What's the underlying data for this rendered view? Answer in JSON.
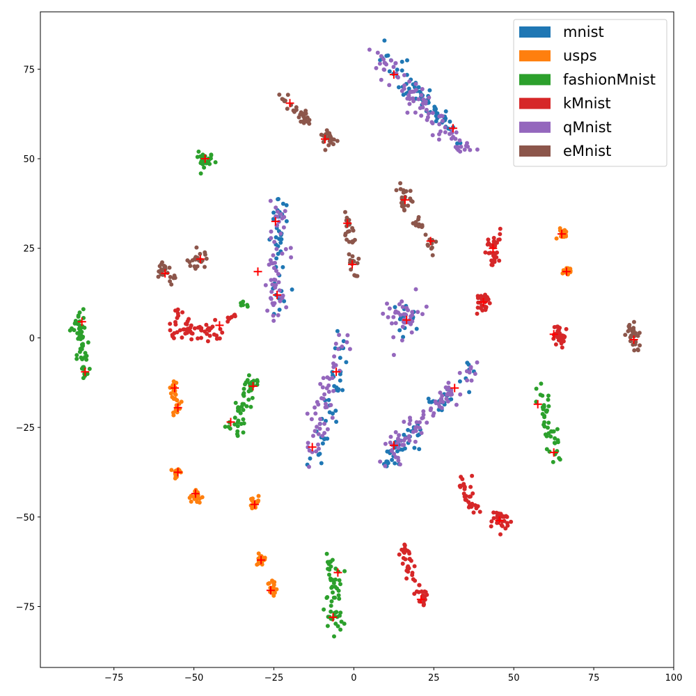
{
  "chart_data": {
    "type": "scatter",
    "title": "",
    "xlabel": "",
    "ylabel": "",
    "xlim": [
      -98,
      100
    ],
    "ylim": [
      -92,
      91
    ],
    "xticks": [
      -75,
      -50,
      -25,
      0,
      25,
      50,
      75,
      100
    ],
    "yticks": [
      -75,
      -50,
      -25,
      0,
      25,
      50,
      75
    ],
    "grid": false,
    "legend_position": "top-right",
    "centroid_color": "#ff0000",
    "series": [
      {
        "name": "mnist",
        "color": "#1f77b4",
        "clusters": [
          {
            "a": [
              8,
              80
            ],
            "b": [
              34,
              54
            ],
            "w": 3,
            "n": 70
          },
          {
            "a": [
              -23,
              39
            ],
            "b": [
              -24,
              6
            ],
            "w": 2.5,
            "n": 40
          },
          {
            "a": [
              -3,
              -1
            ],
            "b": [
              -13,
              -38
            ],
            "w": 2.5,
            "n": 40
          },
          {
            "a": [
              10,
              -35
            ],
            "b": [
              22,
              -24
            ],
            "w": 3,
            "n": 35
          },
          {
            "a": [
              24,
              -20
            ],
            "b": [
              38,
              -9
            ],
            "w": 2.5,
            "n": 25
          },
          {
            "a": [
              16,
              6
            ],
            "b": [
              16,
              6
            ],
            "w": 4,
            "n": 15
          }
        ]
      },
      {
        "name": "usps",
        "color": "#ff7f0e",
        "clusters": [
          {
            "a": [
              -56,
              -12
            ],
            "b": [
              -56,
              -21
            ],
            "w": 1.5,
            "n": 30
          },
          {
            "a": [
              -55,
              -37.5
            ],
            "b": [
              -55,
              -37.5
            ],
            "w": 1.5,
            "n": 20
          },
          {
            "a": [
              -49.5,
              -44
            ],
            "b": [
              -49.5,
              -44
            ],
            "w": 1.5,
            "n": 18
          },
          {
            "a": [
              -31,
              -46
            ],
            "b": [
              -31,
              -46
            ],
            "w": 1.5,
            "n": 18
          },
          {
            "a": [
              -29,
              -62
            ],
            "b": [
              -29,
              -62
            ],
            "w": 1.7,
            "n": 20
          },
          {
            "a": [
              -26,
              -69
            ],
            "b": [
              -25,
              -71.5
            ],
            "w": 1.5,
            "n": 18
          },
          {
            "a": [
              65,
              30
            ],
            "b": [
              65,
              28
            ],
            "w": 1.3,
            "n": 15
          },
          {
            "a": [
              66.5,
              18.5
            ],
            "b": [
              66.5,
              18.5
            ],
            "w": 1.3,
            "n": 15
          }
        ]
      },
      {
        "name": "fashionMnist",
        "color": "#2ca02c",
        "clusters": [
          {
            "a": [
              -46.5,
              50
            ],
            "b": [
              -46.5,
              50
            ],
            "w": 2,
            "n": 30
          },
          {
            "a": [
              -86,
              7
            ],
            "b": [
              -84,
              -12
            ],
            "w": 1.8,
            "n": 55
          },
          {
            "a": [
              -31,
              -11
            ],
            "b": [
              -39,
              -27
            ],
            "w": 2.2,
            "n": 50
          },
          {
            "a": [
              -36,
              9
            ],
            "b": [
              -33,
              9
            ],
            "w": 1,
            "n": 6
          },
          {
            "a": [
              -6,
              -62
            ],
            "b": [
              -6,
              -82
            ],
            "w": 2.5,
            "n": 55
          },
          {
            "a": [
              58,
              -15
            ],
            "b": [
              64,
              -34
            ],
            "w": 1.8,
            "n": 45
          }
        ]
      },
      {
        "name": "kMnist",
        "color": "#d62728",
        "clusters": [
          {
            "a": [
              -56,
              2
            ],
            "b": [
              -40,
              2
            ],
            "w": 2.5,
            "n": 55
          },
          {
            "a": [
              -40,
              5
            ],
            "b": [
              -36,
              7
            ],
            "w": 1,
            "n": 8
          },
          {
            "a": [
              -56,
              8
            ],
            "b": [
              -55,
              6
            ],
            "w": 1,
            "n": 5
          },
          {
            "a": [
              44,
              29
            ],
            "b": [
              43,
              21
            ],
            "w": 2,
            "n": 35
          },
          {
            "a": [
              40,
              12
            ],
            "b": [
              41,
              8
            ],
            "w": 2.2,
            "n": 30
          },
          {
            "a": [
              64,
              3
            ],
            "b": [
              64,
              -2
            ],
            "w": 2,
            "n": 30
          },
          {
            "a": [
              34,
              -41
            ],
            "b": [
              38,
              -48
            ],
            "w": 2.2,
            "n": 30
          },
          {
            "a": [
              45,
              -49
            ],
            "b": [
              47,
              -53
            ],
            "w": 2.5,
            "n": 30
          },
          {
            "a": [
              16,
              -59
            ],
            "b": [
              22,
              -75
            ],
            "w": 1.8,
            "n": 45
          }
        ]
      },
      {
        "name": "qMnist",
        "color": "#9467bd",
        "clusters": [
          {
            "a": [
              6,
              80
            ],
            "b": [
              35,
              52
            ],
            "w": 3,
            "n": 90
          },
          {
            "a": [
              -23,
              38
            ],
            "b": [
              -25,
              6
            ],
            "w": 3,
            "n": 55
          },
          {
            "a": [
              -4,
              0
            ],
            "b": [
              -14,
              -36
            ],
            "w": 3,
            "n": 55
          },
          {
            "a": [
              11,
              -34
            ],
            "b": [
              21,
              -23
            ],
            "w": 3.5,
            "n": 45
          },
          {
            "a": [
              24,
              -20
            ],
            "b": [
              38,
              -8
            ],
            "w": 2.8,
            "n": 40
          },
          {
            "a": [
              16,
              6
            ],
            "b": [
              16,
              6
            ],
            "w": 5,
            "n": 40
          }
        ]
      },
      {
        "name": "eMnist",
        "color": "#8c564b",
        "clusters": [
          {
            "a": [
              -23,
              67
            ],
            "b": [
              -14,
              60
            ],
            "w": 1.8,
            "n": 30
          },
          {
            "a": [
              -9,
              57
            ],
            "b": [
              -6,
              54
            ],
            "w": 2,
            "n": 25
          },
          {
            "a": [
              -60,
              20
            ],
            "b": [
              -57,
              16
            ],
            "w": 2,
            "n": 25
          },
          {
            "a": [
              -52,
              21
            ],
            "b": [
              -46,
              22
            ],
            "w": 2,
            "n": 25
          },
          {
            "a": [
              -2,
              34
            ],
            "b": [
              0,
              17
            ],
            "w": 1.8,
            "n": 35
          },
          {
            "a": [
              15,
              41
            ],
            "b": [
              17,
              37
            ],
            "w": 2,
            "n": 25
          },
          {
            "a": [
              19,
              34
            ],
            "b": [
              25,
              25
            ],
            "w": 1.5,
            "n": 22
          },
          {
            "a": [
              87,
              3
            ],
            "b": [
              88,
              -3
            ],
            "w": 1.8,
            "n": 30
          }
        ]
      }
    ],
    "centroids": [
      [
        12.5,
        73.5
      ],
      [
        31,
        58.5
      ],
      [
        -20,
        65.5
      ],
      [
        -9,
        55.5
      ],
      [
        -46.5,
        50
      ],
      [
        -24.5,
        32.5
      ],
      [
        -2,
        32
      ],
      [
        -0.5,
        20.5
      ],
      [
        -24,
        12
      ],
      [
        -48,
        22
      ],
      [
        -59,
        18
      ],
      [
        -30,
        18.5
      ],
      [
        16,
        38.5
      ],
      [
        24,
        27
      ],
      [
        65,
        29
      ],
      [
        66.5,
        18.5
      ],
      [
        43.5,
        25
      ],
      [
        40.5,
        10
      ],
      [
        16.5,
        5
      ],
      [
        62.5,
        1
      ],
      [
        87.5,
        -0.5
      ],
      [
        -85,
        4.5
      ],
      [
        -84,
        -9.5
      ],
      [
        -42,
        3.5
      ],
      [
        -56,
        -14
      ],
      [
        -55,
        -19.5
      ],
      [
        -31.5,
        -13.5
      ],
      [
        -5.5,
        -9.5
      ],
      [
        31.5,
        -14
      ],
      [
        57.5,
        -18.5
      ],
      [
        -38.5,
        -23.5
      ],
      [
        -13,
        -30.5
      ],
      [
        12.5,
        -30
      ],
      [
        62.5,
        -32
      ],
      [
        -55,
        -37.5
      ],
      [
        -49.5,
        -43.5
      ],
      [
        -31,
        -46.5
      ],
      [
        45.5,
        -51
      ],
      [
        -29,
        -62
      ],
      [
        -5,
        -65.5
      ],
      [
        -26,
        -70.5
      ],
      [
        21,
        -73
      ],
      [
        -6.5,
        -78
      ]
    ]
  }
}
